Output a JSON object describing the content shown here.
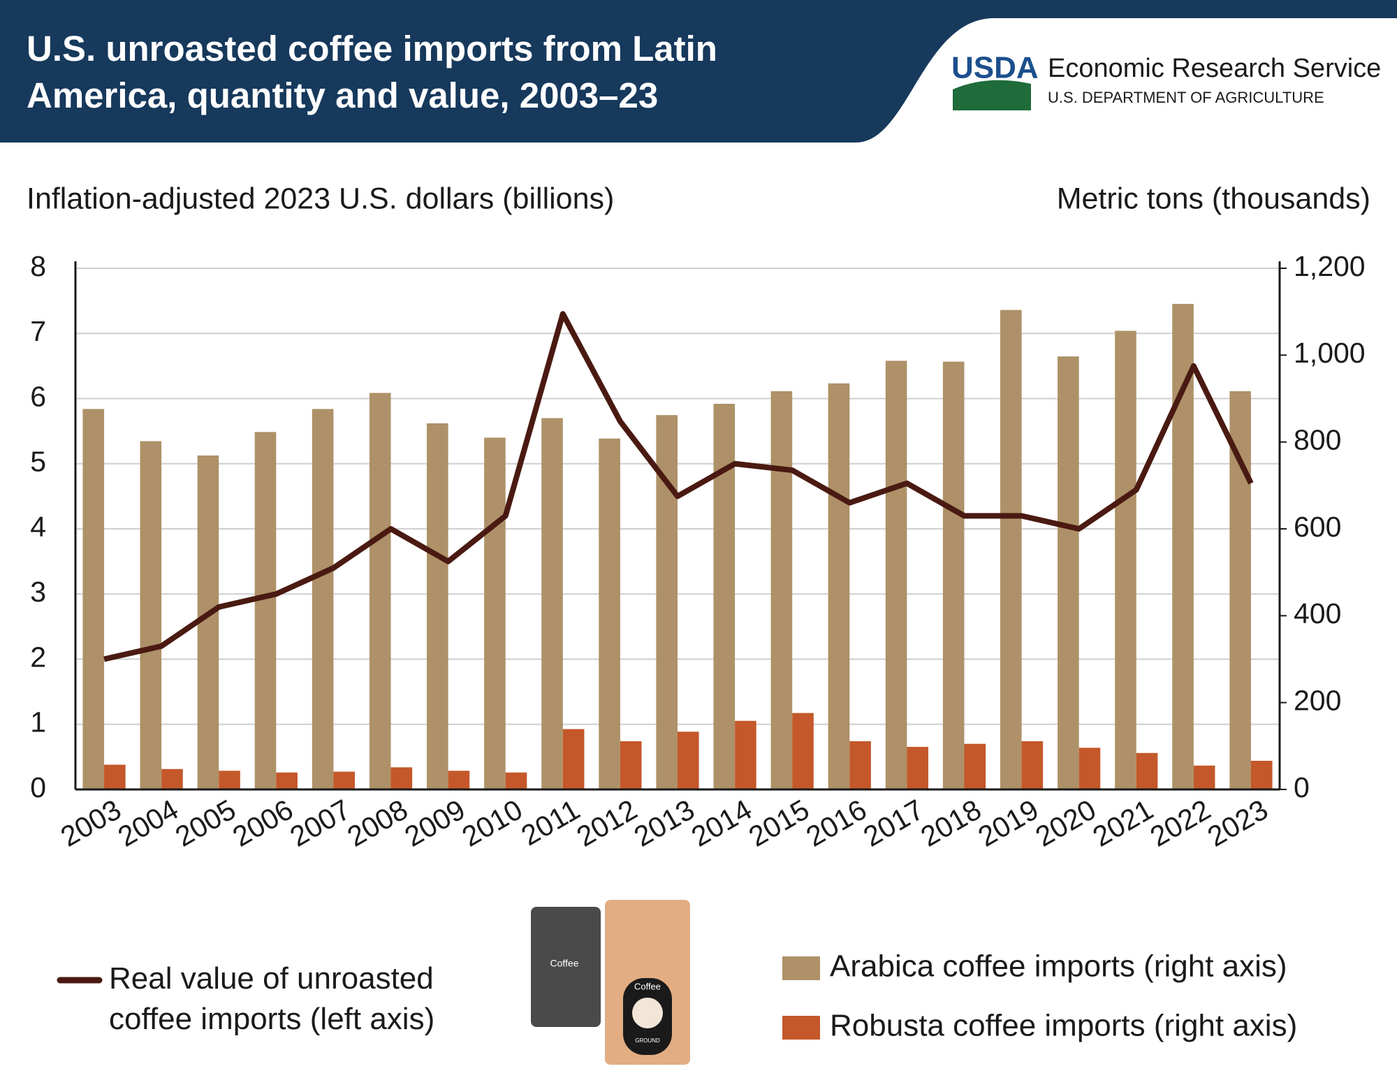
{
  "header": {
    "title": "U.S. unroasted coffee imports from Latin America, quantity and value, 2003–23",
    "logo": "USDA",
    "org": "Economic Research Service",
    "dept": "U.S. DEPARTMENT OF AGRICULTURE"
  },
  "illustration": {
    "bag_left": "Coffee",
    "bag_right": "Coffee",
    "bag_right_sub": "GROUND"
  },
  "chart_data": {
    "type": "bar",
    "y_label": "Inflation-adjusted 2023 U.S. dollars (billions)",
    "y2_label": "Metric tons (thousands)",
    "categories": [
      "2003",
      "2004",
      "2005",
      "2006",
      "2007",
      "2008",
      "2009",
      "2010",
      "2011",
      "2012",
      "2013",
      "2014",
      "2015",
      "2016",
      "2017",
      "2018",
      "2019",
      "2020",
      "2021",
      "2022",
      "2023"
    ],
    "series": [
      {
        "name": "Real value of unroasted coffee imports (left axis)",
        "type": "line",
        "color": "#4a1a12",
        "values": [
          2.0,
          2.2,
          2.8,
          3.0,
          3.4,
          4.0,
          3.5,
          4.2,
          7.3,
          5.65,
          4.5,
          5.0,
          4.9,
          4.4,
          4.7,
          4.2,
          4.2,
          4.0,
          4.6,
          6.5,
          4.7
        ]
      },
      {
        "name": "Arabica coffee imports (right axis)",
        "axis": "y2",
        "color": "#ae9168",
        "values": [
          876,
          802,
          769,
          823,
          876,
          913,
          843,
          810,
          855,
          808,
          862,
          888,
          917,
          935,
          987,
          985,
          1104,
          997,
          1056,
          1118,
          917
        ]
      },
      {
        "name": "Robusta coffee imports (right axis)",
        "axis": "y2",
        "color": "#c4582a",
        "values": [
          57,
          47,
          43,
          39,
          41,
          51,
          43,
          39,
          139,
          111,
          133,
          158,
          176,
          111,
          98,
          105,
          111,
          96,
          84,
          55,
          66
        ]
      }
    ],
    "ylim": [
      0,
      8
    ],
    "yticks": [
      0,
      1,
      2,
      3,
      4,
      5,
      6,
      7,
      8
    ],
    "y2lim": [
      0,
      1200
    ],
    "y2ticks": [
      0,
      200,
      400,
      600,
      800,
      {
        "value": 1000,
        "label": "1,000"
      },
      {
        "value": 1200,
        "label": "1,200"
      }
    ],
    "grid": true
  }
}
